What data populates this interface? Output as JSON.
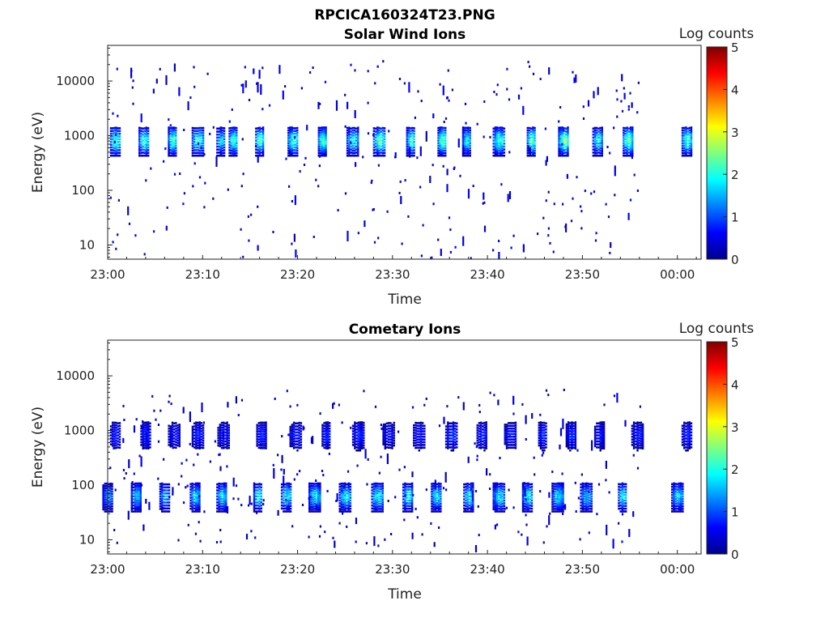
{
  "figure_title": "RPCICA160324T23.PNG",
  "colors": {
    "colormap": [
      "#00008f",
      "#0000ff",
      "#00ffff",
      "#ffff00",
      "#ff0000",
      "#800000"
    ],
    "colormap_name": "jet"
  },
  "chart_data": [
    {
      "type": "heatmap",
      "title": "Solar Wind Ions",
      "xlabel": "Time",
      "ylabel": "Energy (eV)",
      "colorbar_label": "Log counts",
      "x_ticks": [
        "23:00",
        "23:10",
        "23:20",
        "23:30",
        "23:40",
        "23:50",
        "00:00"
      ],
      "y_ticks": [
        "10",
        "100",
        "1000",
        "10000"
      ],
      "colorbar_ticks": [
        "0",
        "1",
        "2",
        "3",
        "4",
        "5"
      ],
      "xlim_minutes": [
        0,
        62.5
      ],
      "ylim_eV": [
        5.5,
        45000
      ],
      "clim": [
        0,
        5
      ],
      "y_scale": "log",
      "grid": false,
      "series": [
        {
          "kind": "burst",
          "center_eV": 850,
          "times_min": [
            0.8,
            3.8,
            6.8,
            9.5,
            11.9,
            13.2,
            16.0,
            19.5,
            22.6,
            25.8,
            28.6,
            31.9,
            35.2,
            37.8,
            41.2,
            44.6,
            48.0,
            51.6,
            54.8,
            61.0
          ],
          "peak_log_counts": [
            2.3,
            2.2,
            2.4,
            2.2,
            1.8,
            2.3,
            2.4,
            2.3,
            2.4,
            2.0,
            2.5,
            2.3,
            2.6,
            2.0,
            2.3,
            2.5,
            2.7,
            2.0,
            2.6,
            2.4
          ]
        },
        {
          "kind": "sparse",
          "e_range_eV": [
            6,
            25000
          ],
          "level_log_counts": 0.6
        }
      ]
    },
    {
      "type": "heatmap",
      "title": "Cometary Ions",
      "xlabel": "Time",
      "ylabel": "Energy (eV)",
      "colorbar_label": "Log counts",
      "x_ticks": [
        "23:00",
        "23:10",
        "23:20",
        "23:30",
        "23:40",
        "23:50",
        "00:00"
      ],
      "y_ticks": [
        "10",
        "100",
        "1000",
        "10000"
      ],
      "colorbar_ticks": [
        "0",
        "1",
        "2",
        "3",
        "4",
        "5"
      ],
      "xlim_minutes": [
        0,
        62.5
      ],
      "ylim_eV": [
        5.5,
        45000
      ],
      "clim": [
        0,
        5
      ],
      "y_scale": "log",
      "grid": false,
      "series": [
        {
          "kind": "burst",
          "center_eV": 65,
          "times_min": [
            0.0,
            3.0,
            6.0,
            9.2,
            12.0,
            15.8,
            18.8,
            21.8,
            25.0,
            28.4,
            31.6,
            34.6,
            38.0,
            41.2,
            44.2,
            47.4,
            50.4,
            54.2,
            60.0
          ],
          "peak_log_counts": [
            1.4,
            1.7,
            1.6,
            1.8,
            1.9,
            2.0,
            2.0,
            1.9,
            1.9,
            2.0,
            2.0,
            2.0,
            2.0,
            1.9,
            2.0,
            1.9,
            1.7,
            2.0,
            1.8
          ]
        },
        {
          "kind": "burst",
          "center_eV": 850,
          "times_min": [
            0.8,
            4.0,
            7.0,
            9.5,
            12.2,
            16.2,
            19.8,
            23.0,
            26.4,
            29.6,
            32.8,
            36.2,
            39.4,
            42.4,
            45.8,
            48.8,
            51.8,
            55.8,
            61.0
          ],
          "peak_log_counts": [
            0.8,
            0.9,
            0.7,
            0.8,
            0.7,
            0.9,
            0.8,
            0.9,
            0.9,
            0.7,
            0.8,
            1.0,
            0.9,
            0.8,
            0.9,
            0.9,
            0.8,
            0.8,
            0.9
          ]
        },
        {
          "kind": "sparse",
          "e_range_eV": [
            8,
            6000
          ],
          "level_log_counts": 0.5
        }
      ]
    }
  ]
}
